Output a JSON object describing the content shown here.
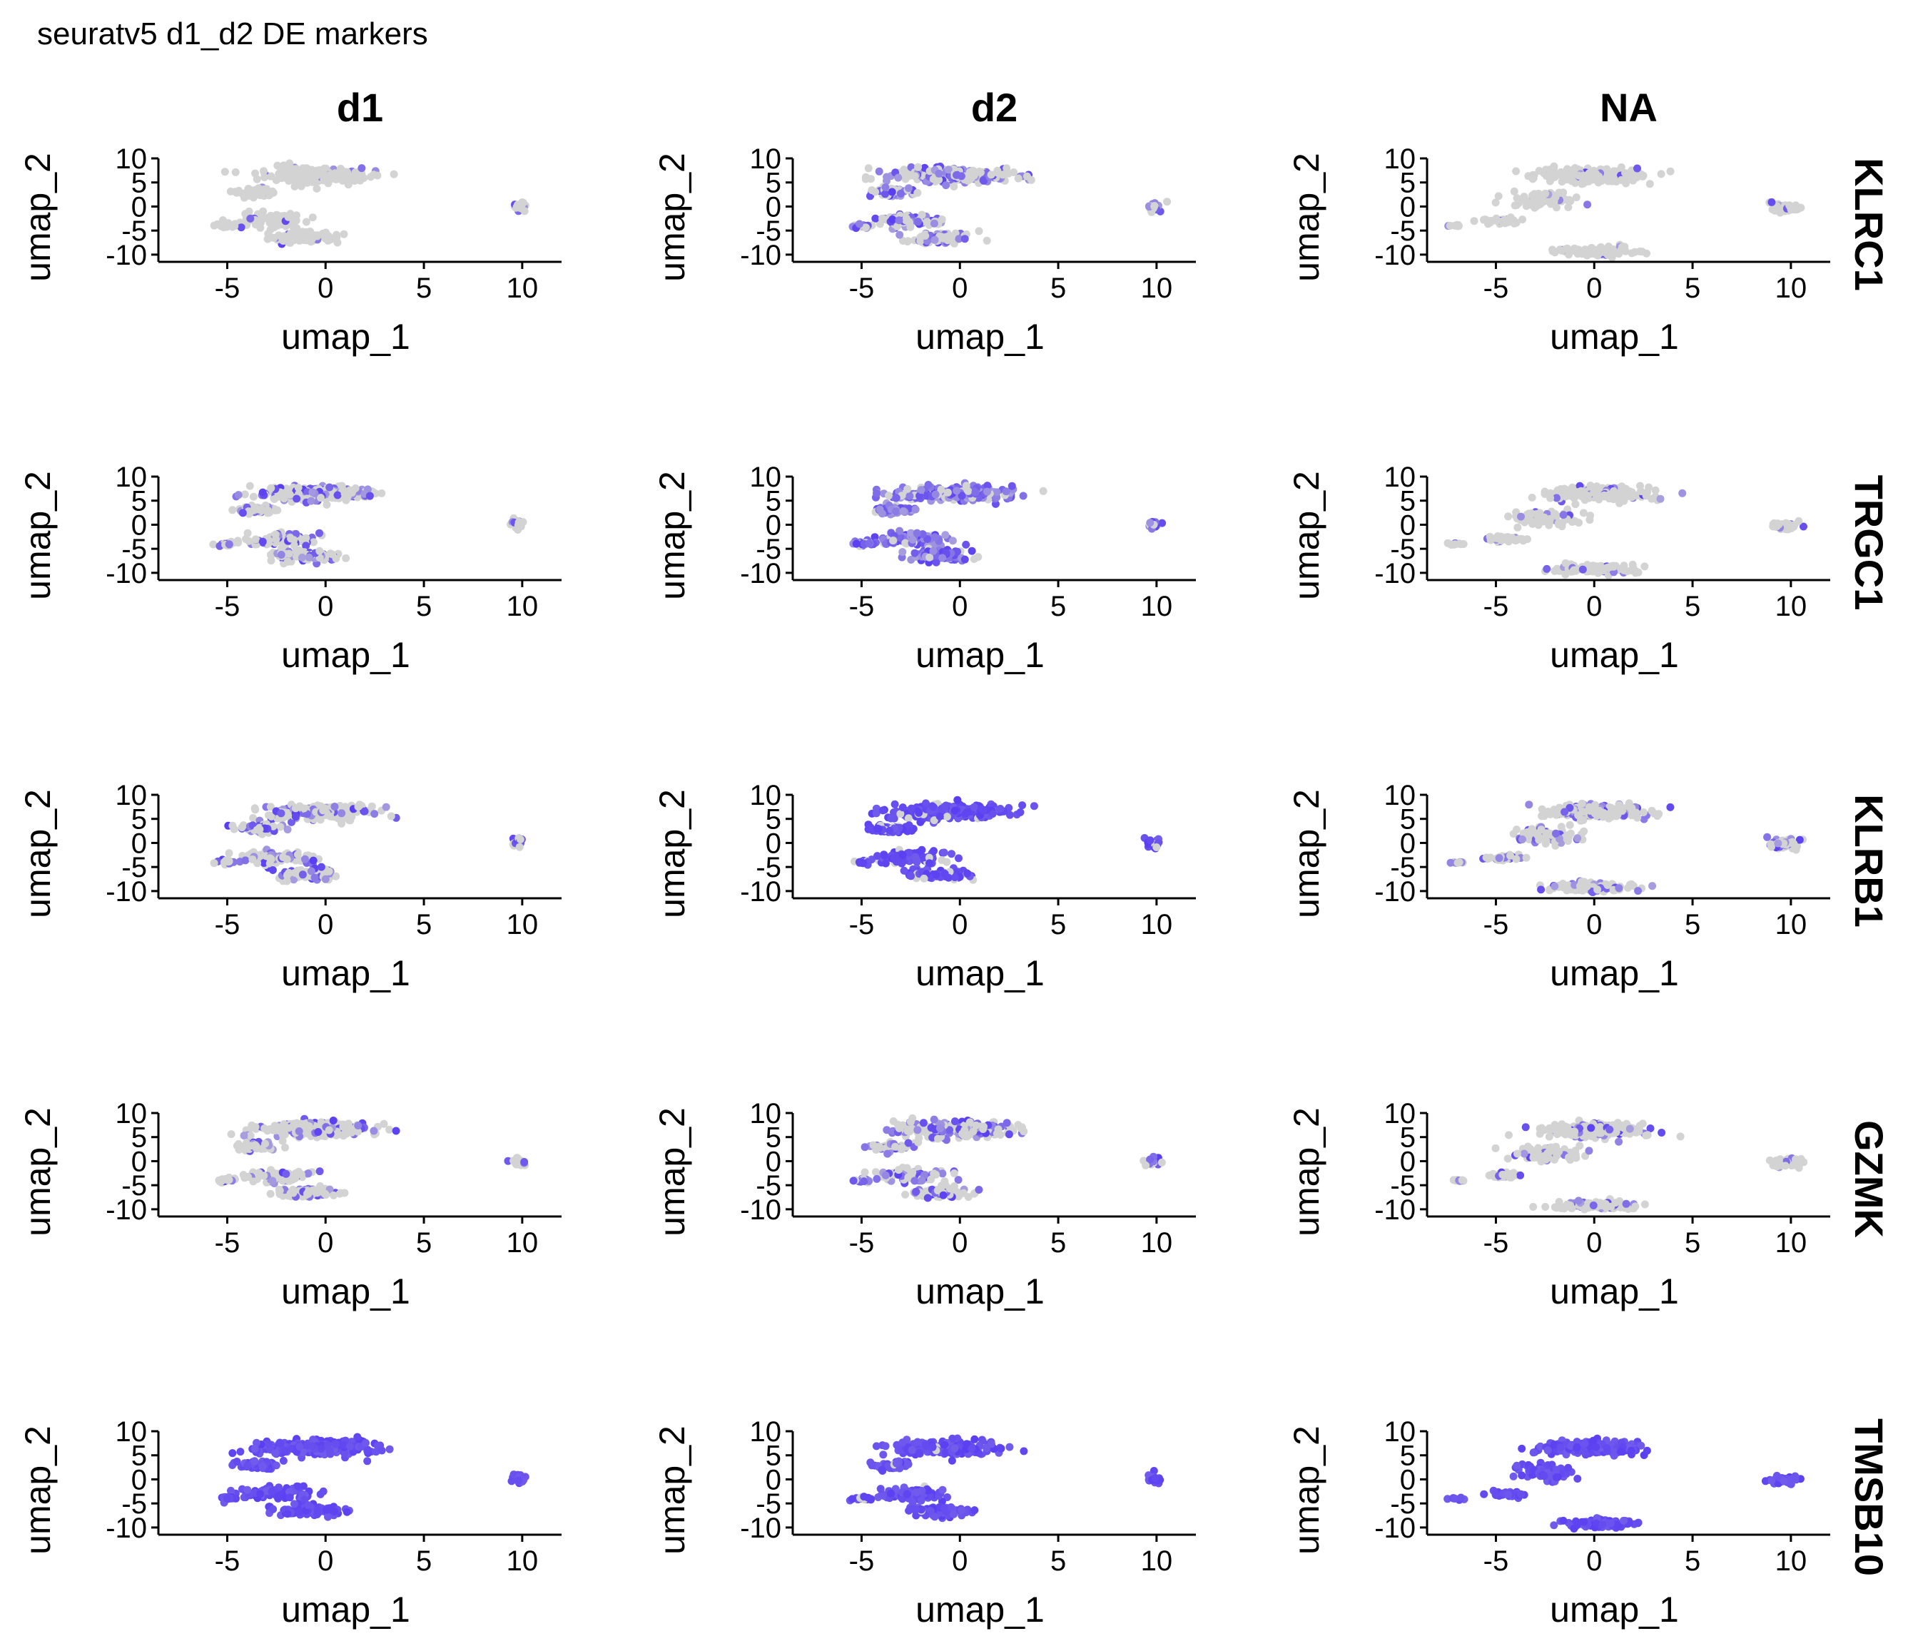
{
  "figure": {
    "title": "seuratv5 d1_d2 DE markers"
  },
  "colors": {
    "low": "#D3D3D3",
    "high": "#5A3FF2",
    "axis": "#000000"
  },
  "chart_data": {
    "type": "scatter",
    "description_of_facets": "rows are genes, columns are groups; UMAP feature plots",
    "columns": [
      "d1",
      "d2",
      "NA"
    ],
    "rows": [
      "KLRC1",
      "TRGC1",
      "KLRB1",
      "GZMK",
      "TMSB10"
    ],
    "xlabel": "umap_1",
    "ylabel": "umap_2",
    "xlim": [
      -8.5,
      12
    ],
    "ylim": [
      -11.5,
      10
    ],
    "xticks": [
      -5,
      0,
      5,
      10
    ],
    "xtick_labels": [
      "-5",
      "0",
      "5",
      "10"
    ],
    "yticks": [
      10,
      5,
      0,
      -5,
      -10
    ],
    "ytick_labels": [
      "10",
      "5",
      "0",
      "-5",
      "-10"
    ],
    "expression_level": {
      "KLRC1": {
        "d1": 0.06,
        "d2": 0.45,
        "NA": 0.08
      },
      "TRGC1": {
        "d1": 0.4,
        "d2": 0.85,
        "NA": 0.1
      },
      "KLRB1": {
        "d1": 0.35,
        "d2": 0.9,
        "NA": 0.28
      },
      "GZMK": {
        "d1": 0.25,
        "d2": 0.4,
        "NA": 0.22
      },
      "TMSB10": {
        "d1": 1.0,
        "d2": 0.95,
        "NA": 1.0
      }
    }
  }
}
